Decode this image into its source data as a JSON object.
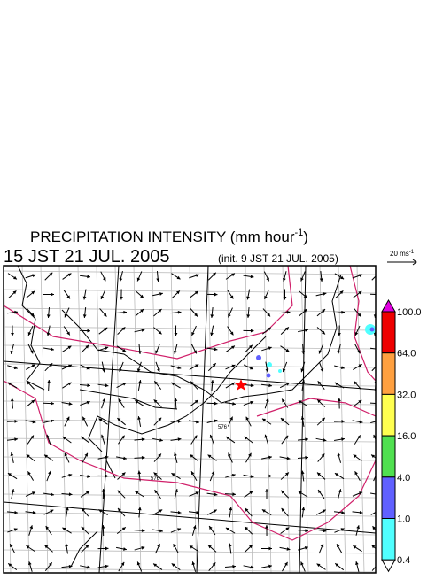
{
  "header": {
    "title": "PRECIPITATION INTENSITY (mm hour",
    "title_sup": "-1",
    "title_end": ")",
    "time": "15 JST 21 JUL. 2005",
    "init": "(init. 9 JST 21 JUL. 2005)"
  },
  "wind_scale": {
    "label": "20 ms",
    "sup": "-1"
  },
  "legend": {
    "items": [
      {
        "label": "100.0",
        "color": "#e000e0"
      },
      {
        "label": "64.0",
        "color": "#ee0000"
      },
      {
        "label": "32.0",
        "color": "#ffa040"
      },
      {
        "label": "16.0",
        "color": "#ffff50"
      },
      {
        "label": "4.0",
        "color": "#50e050"
      },
      {
        "label": "1.0",
        "color": "#6060ff"
      },
      {
        "label": "0.4",
        "color": "#50ffff"
      }
    ]
  },
  "map": {
    "contour_labels": [
      "576",
      "576"
    ]
  }
}
